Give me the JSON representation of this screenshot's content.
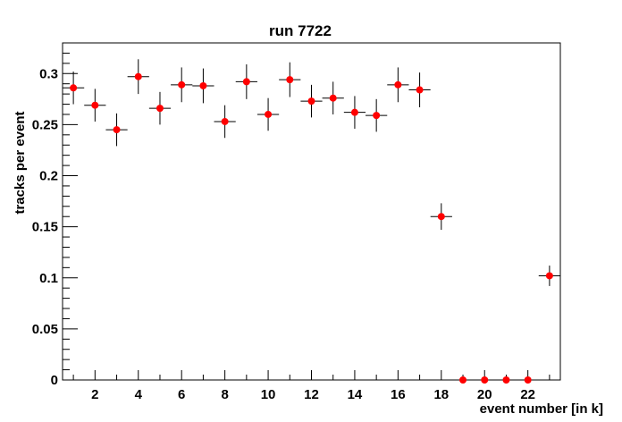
{
  "chart_data": {
    "type": "scatter",
    "title": "run 7722",
    "xlabel": "event number [in k]",
    "ylabel": "tracks per event",
    "xlim": [
      0.5,
      23.5
    ],
    "ylim": [
      0,
      0.33
    ],
    "x_ticks": [
      2,
      4,
      6,
      8,
      10,
      12,
      14,
      16,
      18,
      20,
      22
    ],
    "x_tick_labels": [
      "2",
      "4",
      "6",
      "8",
      "10",
      "12",
      "14",
      "16",
      "18",
      "20",
      "22"
    ],
    "y_ticks": [
      0,
      0.05,
      0.1,
      0.15,
      0.2,
      0.25,
      0.3
    ],
    "y_tick_labels": [
      "0",
      "0.05",
      "0.1",
      "0.15",
      "0.2",
      "0.25",
      "0.3"
    ],
    "x_error": 0.5,
    "series": [
      {
        "name": "run 7722",
        "marker_color": "#ff0000",
        "error_color": "#000000",
        "x": [
          1,
          2,
          3,
          4,
          5,
          6,
          7,
          8,
          9,
          10,
          11,
          12,
          13,
          14,
          15,
          16,
          17,
          18,
          19,
          20,
          21,
          22,
          23
        ],
        "y": [
          0.286,
          0.269,
          0.245,
          0.297,
          0.266,
          0.289,
          0.288,
          0.253,
          0.292,
          0.26,
          0.294,
          0.273,
          0.276,
          0.262,
          0.259,
          0.289,
          0.284,
          0.16,
          0,
          0,
          0,
          0,
          0.102
        ],
        "y_err": [
          0.016,
          0.016,
          0.016,
          0.017,
          0.016,
          0.017,
          0.017,
          0.016,
          0.017,
          0.016,
          0.017,
          0.016,
          0.016,
          0.016,
          0.016,
          0.017,
          0.017,
          0.013,
          0,
          0,
          0,
          0,
          0.01
        ]
      }
    ]
  }
}
